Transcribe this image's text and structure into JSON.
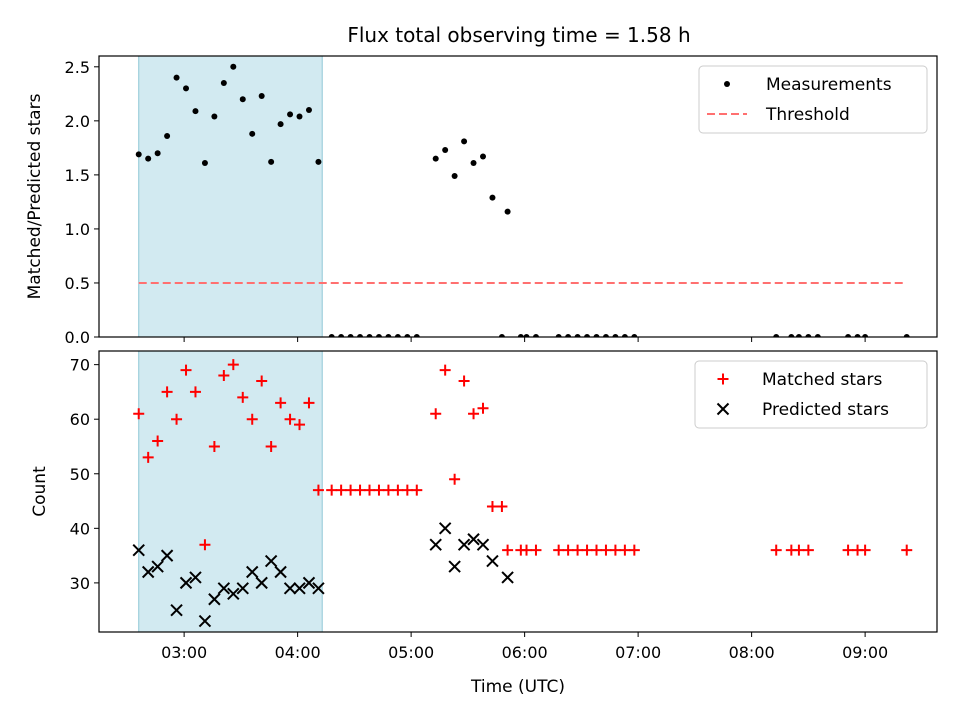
{
  "figure": {
    "title": "Flux total observing time = 1.58 h"
  },
  "chart_data": [
    {
      "type": "scatter",
      "ylabel": "Matched/Predicted stars",
      "xlabel": "",
      "xlim": [
        "02:15",
        "09:38"
      ],
      "ylim": [
        0,
        2.6
      ],
      "yticks": [
        0.0,
        0.5,
        1.0,
        1.5,
        2.0,
        2.5
      ],
      "ytick_labels": [
        "0.0",
        "0.5",
        "1.0",
        "1.5",
        "2.0",
        "2.5"
      ],
      "shaded_interval": [
        "02:36",
        "04:13"
      ],
      "shade_color": "#add8e6",
      "legend_position": "upper right",
      "series": [
        {
          "name": "Measurements",
          "marker": "point",
          "color": "#000000",
          "points": [
            [
              "02:36",
              1.69
            ],
            [
              "02:41",
              1.65
            ],
            [
              "02:46",
              1.7
            ],
            [
              "02:51",
              1.86
            ],
            [
              "02:56",
              2.4
            ],
            [
              "03:01",
              2.3
            ],
            [
              "03:06",
              2.09
            ],
            [
              "03:11",
              1.61
            ],
            [
              "03:16",
              2.04
            ],
            [
              "03:21",
              2.35
            ],
            [
              "03:26",
              2.5
            ],
            [
              "03:31",
              2.2
            ],
            [
              "03:36",
              1.88
            ],
            [
              "03:41",
              2.23
            ],
            [
              "03:46",
              1.62
            ],
            [
              "03:51",
              1.97
            ],
            [
              "03:56",
              2.06
            ],
            [
              "04:01",
              2.04
            ],
            [
              "04:06",
              2.1
            ],
            [
              "04:11",
              1.62
            ],
            [
              "04:18",
              0
            ],
            [
              "04:23",
              0
            ],
            [
              "04:28",
              0
            ],
            [
              "04:33",
              0
            ],
            [
              "04:38",
              0
            ],
            [
              "04:43",
              0
            ],
            [
              "04:48",
              0
            ],
            [
              "04:53",
              0
            ],
            [
              "04:58",
              0
            ],
            [
              "05:03",
              0
            ],
            [
              "05:13",
              1.65
            ],
            [
              "05:18",
              1.73
            ],
            [
              "05:23",
              1.49
            ],
            [
              "05:28",
              1.81
            ],
            [
              "05:33",
              1.61
            ],
            [
              "05:38",
              1.67
            ],
            [
              "05:43",
              1.29
            ],
            [
              "05:51",
              1.16
            ],
            [
              "05:48",
              0
            ],
            [
              "05:58",
              0
            ],
            [
              "06:01",
              0
            ],
            [
              "06:06",
              0
            ],
            [
              "06:18",
              0
            ],
            [
              "06:23",
              0
            ],
            [
              "06:28",
              0
            ],
            [
              "06:33",
              0
            ],
            [
              "06:38",
              0
            ],
            [
              "06:43",
              0
            ],
            [
              "06:48",
              0
            ],
            [
              "06:53",
              0
            ],
            [
              "06:58",
              0
            ],
            [
              "08:13",
              0
            ],
            [
              "08:21",
              0
            ],
            [
              "08:25",
              0
            ],
            [
              "08:30",
              0
            ],
            [
              "08:35",
              0
            ],
            [
              "08:51",
              0
            ],
            [
              "08:56",
              0
            ],
            [
              "09:00",
              0
            ],
            [
              "09:22",
              0
            ]
          ]
        },
        {
          "name": "Threshold",
          "marker": "dashed-line",
          "color": "#ff7070",
          "points": [
            [
              "02:36",
              0.5
            ],
            [
              "09:22",
              0.5
            ]
          ]
        }
      ]
    },
    {
      "type": "scatter",
      "ylabel": "Count",
      "xlabel": "Time (UTC)",
      "xlim": [
        "02:15",
        "09:38"
      ],
      "ylim": [
        21,
        72.5
      ],
      "yticks": [
        30,
        40,
        50,
        60,
        70
      ],
      "ytick_labels": [
        "30",
        "40",
        "50",
        "60",
        "70"
      ],
      "xticks": [
        "03:00",
        "04:00",
        "05:00",
        "06:00",
        "07:00",
        "08:00",
        "09:00"
      ],
      "shaded_interval": [
        "02:36",
        "04:13"
      ],
      "shade_color": "#add8e6",
      "legend_position": "upper right",
      "series": [
        {
          "name": "Matched stars",
          "marker": "plus",
          "color": "#ff0000",
          "points": [
            [
              "02:36",
              61
            ],
            [
              "02:41",
              53
            ],
            [
              "02:46",
              56
            ],
            [
              "02:51",
              65
            ],
            [
              "02:56",
              60
            ],
            [
              "03:01",
              69
            ],
            [
              "03:06",
              65
            ],
            [
              "03:11",
              37
            ],
            [
              "03:16",
              55
            ],
            [
              "03:21",
              68
            ],
            [
              "03:26",
              70
            ],
            [
              "03:31",
              64
            ],
            [
              "03:36",
              60
            ],
            [
              "03:41",
              67
            ],
            [
              "03:46",
              55
            ],
            [
              "03:51",
              63
            ],
            [
              "03:56",
              60
            ],
            [
              "04:01",
              59
            ],
            [
              "04:06",
              63
            ],
            [
              "04:11",
              47
            ],
            [
              "04:18",
              47
            ],
            [
              "04:23",
              47
            ],
            [
              "04:28",
              47
            ],
            [
              "04:33",
              47
            ],
            [
              "04:38",
              47
            ],
            [
              "04:43",
              47
            ],
            [
              "04:48",
              47
            ],
            [
              "04:53",
              47
            ],
            [
              "04:58",
              47
            ],
            [
              "05:03",
              47
            ],
            [
              "05:13",
              61
            ],
            [
              "05:18",
              69
            ],
            [
              "05:23",
              49
            ],
            [
              "05:28",
              67
            ],
            [
              "05:33",
              61
            ],
            [
              "05:38",
              62
            ],
            [
              "05:43",
              44
            ],
            [
              "05:48",
              44
            ],
            [
              "05:51",
              36
            ],
            [
              "05:58",
              36
            ],
            [
              "06:01",
              36
            ],
            [
              "06:06",
              36
            ],
            [
              "06:18",
              36
            ],
            [
              "06:23",
              36
            ],
            [
              "06:28",
              36
            ],
            [
              "06:33",
              36
            ],
            [
              "06:38",
              36
            ],
            [
              "06:43",
              36
            ],
            [
              "06:48",
              36
            ],
            [
              "06:53",
              36
            ],
            [
              "06:58",
              36
            ],
            [
              "08:13",
              36
            ],
            [
              "08:21",
              36
            ],
            [
              "08:25",
              36
            ],
            [
              "08:30",
              36
            ],
            [
              "08:51",
              36
            ],
            [
              "08:56",
              36
            ],
            [
              "09:00",
              36
            ],
            [
              "09:22",
              36
            ]
          ]
        },
        {
          "name": "Predicted stars",
          "marker": "x",
          "color": "#000000",
          "points": [
            [
              "02:36",
              36
            ],
            [
              "02:41",
              32
            ],
            [
              "02:46",
              33
            ],
            [
              "02:51",
              35
            ],
            [
              "02:56",
              25
            ],
            [
              "03:01",
              30
            ],
            [
              "03:06",
              31
            ],
            [
              "03:11",
              23
            ],
            [
              "03:16",
              27
            ],
            [
              "03:21",
              29
            ],
            [
              "03:26",
              28
            ],
            [
              "03:31",
              29
            ],
            [
              "03:36",
              32
            ],
            [
              "03:41",
              30
            ],
            [
              "03:46",
              34
            ],
            [
              "03:51",
              32
            ],
            [
              "03:56",
              29
            ],
            [
              "04:01",
              29
            ],
            [
              "04:06",
              30
            ],
            [
              "04:11",
              29
            ],
            [
              "05:13",
              37
            ],
            [
              "05:18",
              40
            ],
            [
              "05:23",
              33
            ],
            [
              "05:28",
              37
            ],
            [
              "05:33",
              38
            ],
            [
              "05:38",
              37
            ],
            [
              "05:43",
              34
            ],
            [
              "05:51",
              31
            ]
          ]
        }
      ]
    }
  ]
}
